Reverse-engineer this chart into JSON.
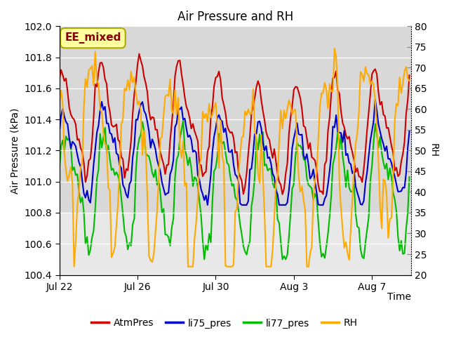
{
  "title": "Air Pressure and RH",
  "xlabel": "Time",
  "ylabel_left": "Air Pressure (kPa)",
  "ylabel_right": "RH",
  "ylim_left": [
    100.4,
    102.0
  ],
  "ylim_right": [
    20,
    80
  ],
  "yticks_left": [
    100.4,
    100.6,
    100.8,
    101.0,
    101.2,
    101.4,
    101.6,
    101.8,
    102.0
  ],
  "yticks_right": [
    20,
    25,
    30,
    35,
    40,
    45,
    50,
    55,
    60,
    65,
    70,
    75,
    80
  ],
  "xtick_labels": [
    "Jul 22",
    "Jul 26",
    "Jul 30",
    "Aug 3",
    "Aug 7"
  ],
  "annotation_text": "EE_mixed",
  "colors": {
    "AtmPres": "#cc0000",
    "li75_pres": "#0000cc",
    "li77_pres": "#00bb00",
    "RH": "#ffaa00"
  },
  "legend_labels": [
    "AtmPres",
    "li75_pres",
    "li77_pres",
    "RH"
  ],
  "background_color": "#ffffff",
  "plot_bg_outer": "#e8e8e8",
  "plot_bg_inner": "#d8d8d8",
  "grid_color": "#f0f0f0",
  "linewidth": 1.5,
  "title_fontsize": 12,
  "axis_fontsize": 10,
  "tick_fontsize": 10,
  "figsize": [
    6.4,
    4.8
  ],
  "dpi": 100
}
